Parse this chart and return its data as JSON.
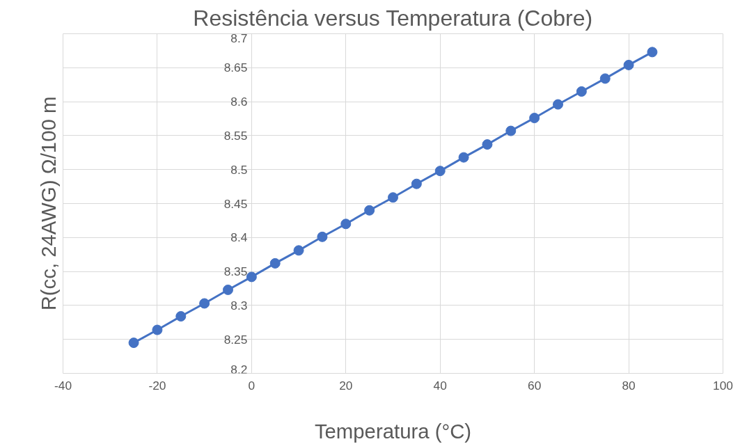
{
  "chart_data": {
    "type": "line",
    "title": "Resistência versus Temperatura (Cobre)",
    "xlabel": "Temperatura (°C)",
    "ylabel": "R(cc, 24AWG) Ω/100 m",
    "x": [
      -25,
      -20,
      -15,
      -10,
      -5,
      0,
      5,
      10,
      15,
      20,
      25,
      30,
      35,
      40,
      45,
      50,
      55,
      60,
      65,
      70,
      75,
      80,
      85
    ],
    "series": [
      {
        "color": "#4472c4",
        "values": [
          8.245,
          8.264,
          8.284,
          8.303,
          8.323,
          8.342,
          8.362,
          8.381,
          8.401,
          8.42,
          8.44,
          8.459,
          8.479,
          8.498,
          8.518,
          8.537,
          8.557,
          8.576,
          8.596,
          8.615,
          8.634,
          8.654,
          8.673
        ]
      }
    ],
    "xlim": [
      -40,
      100
    ],
    "xticks": [
      -40,
      -20,
      0,
      20,
      40,
      60,
      80,
      100
    ],
    "ylim": [
      8.2,
      8.7
    ],
    "yticks": [
      {
        "value": 8.2,
        "label": "8.2"
      },
      {
        "value": 8.25,
        "label": "8.25"
      },
      {
        "value": 8.3,
        "label": "8.3"
      },
      {
        "value": 8.35,
        "label": "8.35"
      },
      {
        "value": 8.4,
        "label": "8.4"
      },
      {
        "value": 8.45,
        "label": "8.45"
      },
      {
        "value": 8.5,
        "label": "8.5"
      },
      {
        "value": 8.55,
        "label": "8.55"
      },
      {
        "value": 8.6,
        "label": "8.6"
      },
      {
        "value": 8.65,
        "label": "8.65"
      },
      {
        "value": 8.7,
        "label": "8.7"
      }
    ],
    "grid": true,
    "marker": "circle",
    "line_style": "solid"
  }
}
